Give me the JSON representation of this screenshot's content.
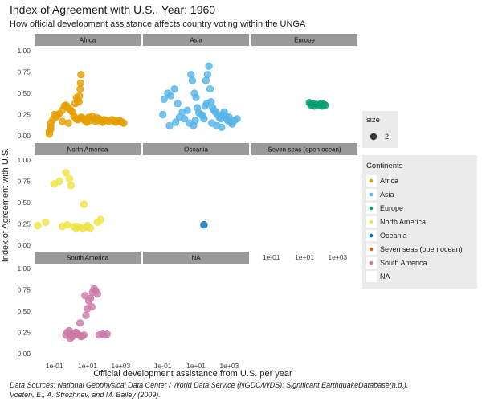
{
  "chart_data": {
    "type": "scatter",
    "title": "Index of Agreement with U.S., Year: 1960",
    "subtitle": "How official development assistance affects country voting within the UNGA",
    "xlabel": "Official development assistance from U.S. per year",
    "ylabel": "Index of Agreement with U.S.",
    "x_scale": "log",
    "x_ticks": [
      {
        "value": 0.1,
        "label": "1e-01"
      },
      {
        "value": 10,
        "label": "1e+01"
      },
      {
        "value": 1000,
        "label": "1e+03"
      }
    ],
    "ylim": [
      0,
      1
    ],
    "y_ticks": [
      {
        "value": 0,
        "label": "0.00"
      },
      {
        "value": 0.25,
        "label": "0.25"
      },
      {
        "value": 0.5,
        "label": "0.50"
      },
      {
        "value": 0.75,
        "label": "0.75"
      },
      {
        "value": 1,
        "label": "1.00"
      }
    ],
    "caption": [
      "Data Sources: National Geophysical Data Center / World Data Service (NGDC/WDS): Significant EarthquakeDatabase(n.d.).",
      "Voeten, E., A. Strezhnev, and M. Bailey (2009)."
    ],
    "size_legend": {
      "title": "size",
      "label": "2"
    },
    "color_legend": {
      "title": "Continents",
      "entries": [
        {
          "name": "Africa",
          "color": "#E69F00"
        },
        {
          "name": "Asia",
          "color": "#56B4E9"
        },
        {
          "name": "Europe",
          "color": "#009E73"
        },
        {
          "name": "North America",
          "color": "#F0E442"
        },
        {
          "name": "Oceania",
          "color": "#0072B2"
        },
        {
          "name": "Seven seas (open ocean)",
          "color": "#D55E00"
        },
        {
          "name": "South America",
          "color": "#CC79A7"
        },
        {
          "name": "NA",
          "color": ""
        }
      ]
    },
    "facets": [
      {
        "name": "Africa",
        "color": "#E69F00",
        "points": [
          [
            0.05,
            0.02
          ],
          [
            0.05,
            0.05
          ],
          [
            0.06,
            0.08
          ],
          [
            0.06,
            0.11
          ],
          [
            0.06,
            0.15
          ],
          [
            0.08,
            0.19
          ],
          [
            0.1,
            0.25
          ],
          [
            0.12,
            0.22
          ],
          [
            0.15,
            0.24
          ],
          [
            0.2,
            0.26
          ],
          [
            0.3,
            0.3
          ],
          [
            0.4,
            0.35
          ],
          [
            0.5,
            0.36
          ],
          [
            0.6,
            0.34
          ],
          [
            0.8,
            0.32
          ],
          [
            1,
            0.3
          ],
          [
            1.2,
            0.28
          ],
          [
            1.5,
            0.23
          ],
          [
            2,
            0.2
          ],
          [
            2.5,
            0.19
          ],
          [
            3,
            0.2
          ],
          [
            4,
            0.22
          ],
          [
            5,
            0.21
          ],
          [
            6,
            0.19
          ],
          [
            7,
            0.18
          ],
          [
            8,
            0.17
          ],
          [
            9,
            0.16
          ],
          [
            10,
            0.2
          ],
          [
            12,
            0.22
          ],
          [
            15,
            0.18
          ],
          [
            20,
            0.23
          ],
          [
            25,
            0.2
          ],
          [
            30,
            0.17
          ],
          [
            35,
            0.19
          ],
          [
            40,
            0.21
          ],
          [
            50,
            0.2
          ],
          [
            60,
            0.18
          ],
          [
            70,
            0.17
          ],
          [
            80,
            0.16
          ],
          [
            100,
            0.19
          ],
          [
            150,
            0.18
          ],
          [
            200,
            0.17
          ],
          [
            300,
            0.19
          ],
          [
            400,
            0.18
          ],
          [
            500,
            0.16
          ],
          [
            600,
            0.17
          ],
          [
            800,
            0.18
          ],
          [
            1000,
            0.17
          ],
          [
            1200,
            0.16
          ],
          [
            1500,
            0.15
          ],
          [
            1.8,
            0.38
          ],
          [
            2.2,
            0.45
          ],
          [
            2.6,
            0.42
          ],
          [
            3,
            0.4
          ],
          [
            3.2,
            0.47
          ],
          [
            3.6,
            0.55
          ],
          [
            3.8,
            0.62
          ],
          [
            4,
            0.72
          ],
          [
            0.7,
            0.15
          ],
          [
            0.3,
            0.17
          ]
        ]
      },
      {
        "name": "Asia",
        "color": "#56B4E9",
        "points": [
          [
            0.1,
            0.25
          ],
          [
            0.12,
            0.43
          ],
          [
            0.2,
            0.5
          ],
          [
            0.3,
            0.47
          ],
          [
            0.5,
            0.55
          ],
          [
            0.8,
            0.38
          ],
          [
            1,
            0.22
          ],
          [
            1.5,
            0.28
          ],
          [
            2,
            0.2
          ],
          [
            3,
            0.3
          ],
          [
            5,
            0.72
          ],
          [
            6,
            0.65
          ],
          [
            8,
            0.5
          ],
          [
            10,
            0.45
          ],
          [
            12,
            0.33
          ],
          [
            15,
            0.27
          ],
          [
            20,
            0.25
          ],
          [
            25,
            0.24
          ],
          [
            30,
            0.2
          ],
          [
            40,
            0.65
          ],
          [
            50,
            0.72
          ],
          [
            60,
            0.82
          ],
          [
            70,
            0.55
          ],
          [
            80,
            0.4
          ],
          [
            100,
            0.33
          ],
          [
            120,
            0.3
          ],
          [
            150,
            0.28
          ],
          [
            200,
            0.25
          ],
          [
            250,
            0.22
          ],
          [
            300,
            0.2
          ],
          [
            400,
            0.25
          ],
          [
            500,
            0.28
          ],
          [
            600,
            0.23
          ],
          [
            700,
            0.2
          ],
          [
            800,
            0.18
          ],
          [
            1000,
            0.22
          ],
          [
            1200,
            0.16
          ],
          [
            1500,
            0.14
          ],
          [
            2000,
            0.18
          ],
          [
            3000,
            0.2
          ],
          [
            0.6,
            0.16
          ],
          [
            4,
            0.15
          ],
          [
            7,
            0.12
          ],
          [
            9,
            0.18
          ],
          [
            35,
            0.35
          ],
          [
            45,
            0.38
          ],
          [
            90,
            0.15
          ],
          [
            180,
            0.12
          ],
          [
            350,
            0.1
          ],
          [
            0.25,
            0.12
          ]
        ]
      },
      {
        "name": "Europe",
        "color": "#009E73",
        "points": [
          [
            20,
            0.39
          ],
          [
            25,
            0.36
          ],
          [
            30,
            0.38
          ],
          [
            40,
            0.35
          ],
          [
            50,
            0.37
          ],
          [
            80,
            0.36
          ],
          [
            100,
            0.38
          ],
          [
            120,
            0.35
          ],
          [
            150,
            0.37
          ],
          [
            180,
            0.36
          ]
        ]
      },
      {
        "name": "North America",
        "color": "#F0E442",
        "points": [
          [
            0.01,
            0.23
          ],
          [
            0.03,
            0.27
          ],
          [
            0.1,
            0.72
          ],
          [
            0.2,
            0.75
          ],
          [
            0.3,
            0.22
          ],
          [
            0.5,
            0.85
          ],
          [
            0.6,
            0.24
          ],
          [
            0.8,
            0.78
          ],
          [
            1,
            0.7
          ],
          [
            1.5,
            0.22
          ],
          [
            2,
            0.2
          ],
          [
            2.5,
            0.22
          ],
          [
            3,
            0.21
          ],
          [
            5,
            0.2
          ],
          [
            6,
            0.48
          ],
          [
            8,
            0.21
          ],
          [
            10,
            0.23
          ],
          [
            15,
            0.2
          ],
          [
            40,
            0.27
          ],
          [
            60,
            0.3
          ]
        ]
      },
      {
        "name": "Oceania",
        "color": "#0072B2",
        "points": [
          [
            30,
            0.24
          ]
        ]
      },
      {
        "name": "Seven seas (open ocean)",
        "color": "#D55E00",
        "points": []
      },
      {
        "name": "South America",
        "color": "#CC79A7",
        "points": [
          [
            0.5,
            0.22
          ],
          [
            0.6,
            0.25
          ],
          [
            0.8,
            0.27
          ],
          [
            1,
            0.22
          ],
          [
            1.2,
            0.2
          ],
          [
            1.5,
            0.23
          ],
          [
            2,
            0.25
          ],
          [
            2.5,
            0.23
          ],
          [
            3,
            0.22
          ],
          [
            4,
            0.2
          ],
          [
            5,
            0.21
          ],
          [
            6,
            0.22
          ],
          [
            8,
            0.45
          ],
          [
            10,
            0.53
          ],
          [
            12,
            0.62
          ],
          [
            15,
            0.65
          ],
          [
            20,
            0.72
          ],
          [
            25,
            0.76
          ],
          [
            30,
            0.74
          ],
          [
            40,
            0.7
          ],
          [
            50,
            0.22
          ],
          [
            80,
            0.23
          ],
          [
            100,
            0.22
          ],
          [
            150,
            0.23
          ],
          [
            3.5,
            0.36
          ],
          [
            7,
            0.68
          ],
          [
            18,
            0.55
          ],
          [
            0.9,
            0.18
          ]
        ]
      },
      {
        "name": "NA",
        "color": "",
        "points": []
      }
    ]
  }
}
